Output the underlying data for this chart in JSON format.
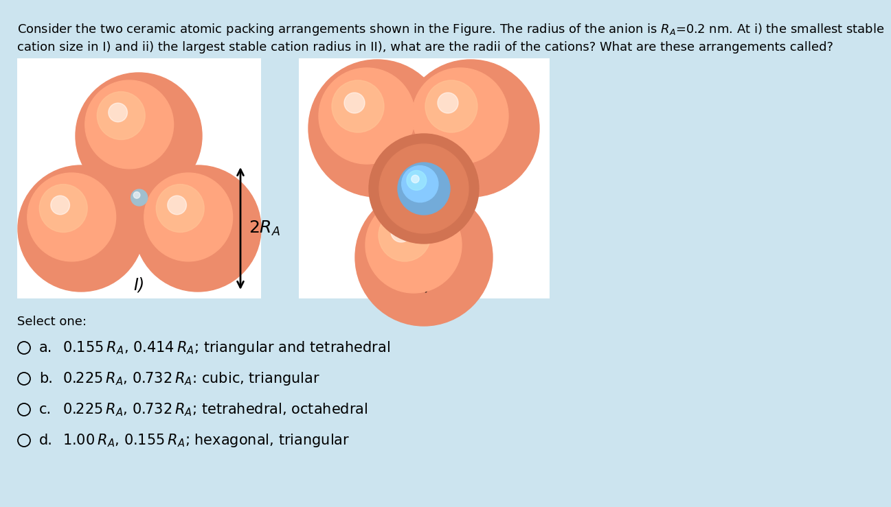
{
  "bg_color": "#cce4ef",
  "panel_bg": "#e8f4f8",
  "white_panel": "#ffffff",
  "anion_color_outer": "#e8826a",
  "anion_color_inner": "#f5b09a",
  "anion_color_highlight": "#fad5c8",
  "cation_I_color": "#a0bfce",
  "cation_II_color": "#5b8fb5",
  "cation_II_highlight": "#9abdd4",
  "arrow_color": "#000000",
  "title_line1": "Consider the two ceramic atomic packing arrangements shown in the Figure. The radius of the anion is R",
  "title_RA": "A",
  "title_line1b": "=0.2 nm. At i) the smallest stable",
  "title_line2": "cation size in I) and ii) the largest stable cation radius in II), what are the radii of the cations? What are these arrangements called?",
  "select_text": "Select one:",
  "opt_a_pre": "0.155 ",
  "opt_a_mid": ", 0.414 ",
  "opt_a_post": "; triangular and tetrahedral",
  "opt_b_pre": "0.225 ",
  "opt_b_mid": ", 0.732 ",
  "opt_b_post": ": cubic, triangular",
  "opt_c_pre": "0.225 ",
  "opt_c_mid": ", 0.732 ",
  "opt_c_post": "; tetrahedral, octahedral",
  "opt_d_pre": "1.00 ",
  "opt_d_mid": ", 0.155 ",
  "opt_d_post": "; hexagonal, triangular",
  "panel_I_label": "I)",
  "panel_II_label": "II)",
  "label_2RA": "2R",
  "label_2RA_sub": "A",
  "title_fontsize": 13.0,
  "label_fontsize": 16,
  "option_fontsize": 15,
  "select_fontsize": 13
}
